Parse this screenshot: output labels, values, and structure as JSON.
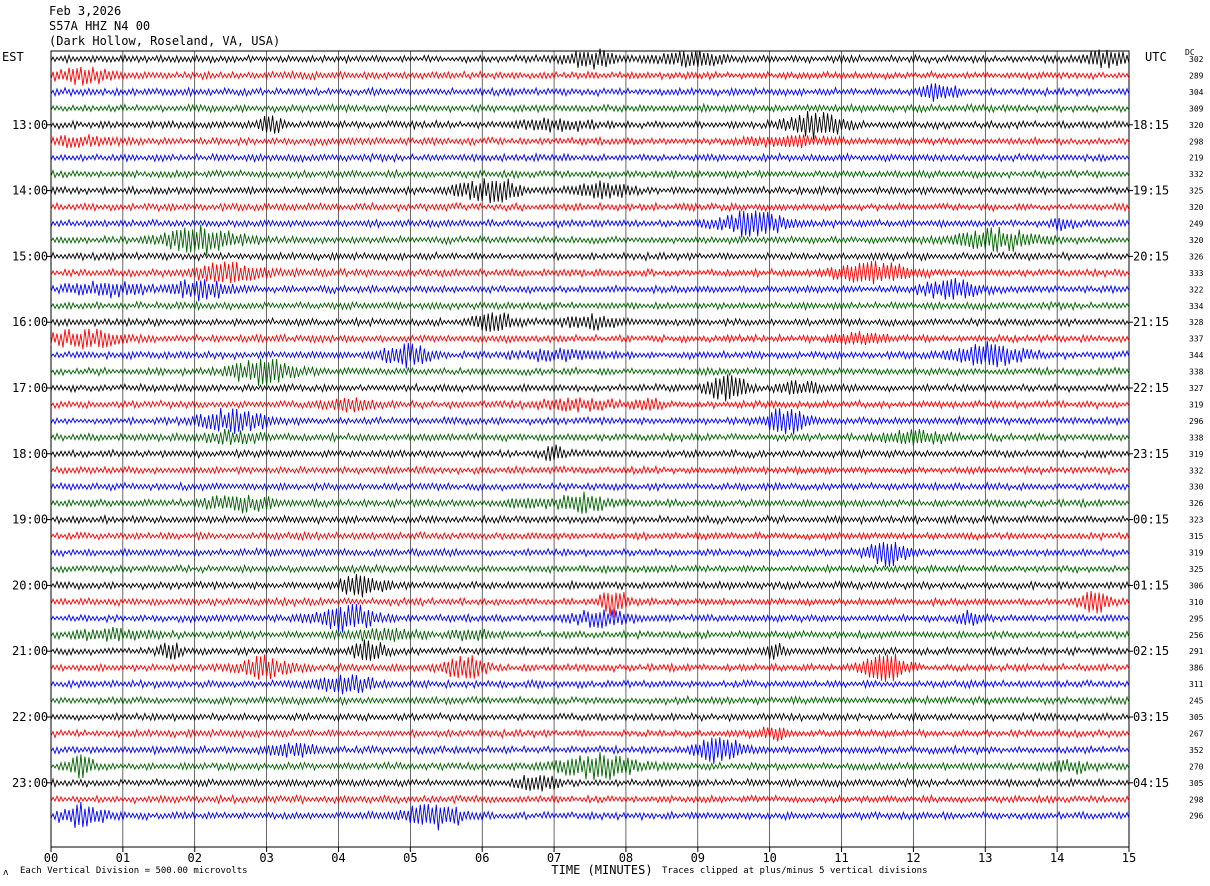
{
  "header": {
    "date": "Feb 3,2026",
    "station": "S57A HHZ N4 00",
    "location": "(Dark Hollow, Roseland, VA, USA)"
  },
  "labels": {
    "left_timezone": "EST",
    "right_timezone": "UTC",
    "dc_label": "DC",
    "x_axis_title": "TIME (MINUTES)",
    "footer_scale": "Each Vertical Division =  500.00 microvolts",
    "footer_clip": "Traces clipped at plus/minus 5 vertical divisions",
    "footer_mark": "ʌ"
  },
  "colors": {
    "trace_cycle": [
      "#000000",
      "#ff0000",
      "#0000ff",
      "#006400"
    ],
    "grid": "#000000",
    "background": "#ffffff"
  },
  "chart_data": {
    "type": "line",
    "title": "",
    "xlabel": "TIME (MINUTES)",
    "ylabel": "",
    "xlim": [
      0,
      15
    ],
    "x_ticks": [
      "00",
      "01",
      "02",
      "03",
      "04",
      "05",
      "06",
      "07",
      "08",
      "09",
      "10",
      "11",
      "12",
      "13",
      "14",
      "15"
    ],
    "rows_per_hour": 4,
    "left_hour_labels": [
      "13:00",
      "14:00",
      "15:00",
      "16:00",
      "17:00",
      "18:00",
      "19:00",
      "20:00",
      "21:00",
      "22:00",
      "23:00"
    ],
    "right_hour_labels": [
      "18:15",
      "19:15",
      "20:15",
      "21:15",
      "22:15",
      "23:15",
      "00:15",
      "01:15",
      "02:15",
      "03:15",
      "04:15"
    ],
    "trace_dc_offsets": [
      302,
      289,
      304,
      309,
      320,
      298,
      219,
      332,
      325,
      320,
      249,
      320,
      326,
      333,
      322,
      334,
      328,
      337,
      344,
      338,
      327,
      319,
      296,
      338,
      319,
      332,
      330,
      326,
      323,
      315,
      319,
      325,
      306,
      310,
      295,
      256,
      291,
      386,
      311,
      245,
      305,
      267,
      352,
      270,
      305,
      298,
      296
    ]
  }
}
